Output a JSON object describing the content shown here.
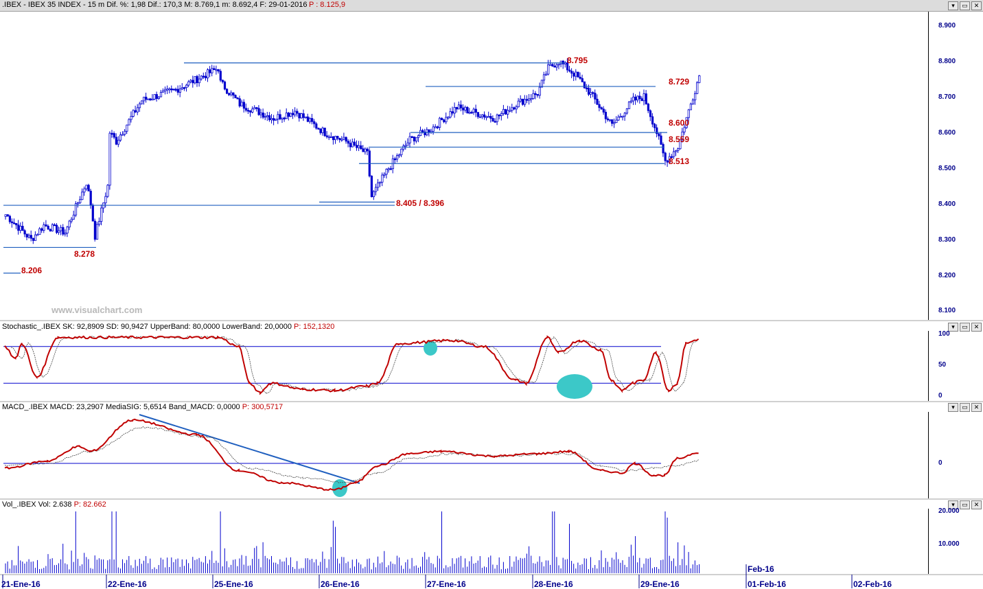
{
  "header": {
    "symbol": ".IBEX - IBEX 35 INDEX -  15 m  Dif. %: 1,98  Dif.: 170,3  M: 8.769,1  m: 8.692,4  F: 29-01-2016",
    "last": "P : 8.125,9"
  },
  "watermark": "www.visualchart.com",
  "window_buttons": [
    "▾",
    "▭",
    "✕"
  ],
  "price_axis": [
    "8.900",
    "8.800",
    "8.700",
    "8.600",
    "8.500",
    "8.400",
    "8.300",
    "8.200",
    "8.100"
  ],
  "levels": {
    "l8795": "8.795",
    "l8729": "8.729",
    "l8600": "8.600",
    "l8559": "8.559",
    "l8513": "8.513",
    "l8405": "8.405 / 8.396",
    "l8278": "8.278",
    "l8206": "8.206"
  },
  "stoch": {
    "title": "Stochastic_.IBEX SK: 92,8909  SD: 90,9427  UpperBand: 80,0000  LowerBand: 20,0000",
    "p": "P: 152,1320",
    "axis": [
      "100",
      "50",
      "0"
    ]
  },
  "macd": {
    "title": "MACD_.IBEX MACD: 23,2907  MediaSIG: 5,6514  Band_MACD: 0,0000",
    "p": "P: 300,5717",
    "axis": [
      "0"
    ]
  },
  "vol": {
    "title": "Vol_.IBEX Vol: 2.638",
    "p": "P: 82.662",
    "axis": [
      "20.000",
      "10.000"
    ]
  },
  "dates": {
    "d1": "21-Ene-16",
    "d2": "22-Ene-16",
    "d3": "25-Ene-16",
    "d4": "26-Ene-16",
    "d5": "27-Ene-16",
    "d6": "28-Ene-16",
    "d7": "29-Ene-16",
    "d8": "Feb-16",
    "d9": "01-Feb-16",
    "d10": "02-Feb-16"
  },
  "colors": {
    "up": "#ffffff",
    "down": "#0000cd",
    "line": "#1f5fbf",
    "signal": "#c00000"
  },
  "chart_data": {
    "type": "candlestick",
    "ylim": [
      8080,
      8940
    ],
    "price_path": [
      [
        8370,
        0
      ],
      [
        8300,
        12
      ],
      [
        8340,
        18
      ],
      [
        8320,
        28
      ],
      [
        8460,
        38
      ],
      [
        8400,
        40
      ],
      [
        8310,
        42
      ],
      [
        8450,
        48
      ],
      [
        8600,
        49
      ],
      [
        8575,
        52
      ],
      [
        8690,
        64
      ],
      [
        8720,
        80
      ],
      [
        8780,
        100
      ],
      [
        8740,
        101
      ],
      [
        8680,
        110
      ],
      [
        8640,
        126
      ],
      [
        8660,
        136
      ],
      [
        8600,
        150
      ],
      [
        8575,
        160
      ],
      [
        8540,
        170
      ],
      [
        8420,
        172
      ],
      [
        8500,
        180
      ],
      [
        8580,
        190
      ],
      [
        8610,
        200
      ],
      [
        8670,
        212
      ],
      [
        8640,
        230
      ],
      [
        8680,
        240
      ],
      [
        8710,
        250
      ],
      [
        8780,
        255
      ],
      [
        8800,
        260
      ],
      [
        8760,
        268
      ],
      [
        8700,
        276
      ],
      [
        8620,
        285
      ],
      [
        8690,
        295
      ],
      [
        8700,
        300
      ],
      [
        8600,
        306
      ],
      [
        8520,
        310
      ],
      [
        8560,
        316
      ],
      [
        8760,
        326
      ]
    ],
    "stochastic": {
      "upper_band": 80,
      "lower_band": 20,
      "sk": [
        [
          80,
          0
        ],
        [
          60,
          5
        ],
        [
          85,
          8
        ],
        [
          30,
          15
        ],
        [
          95,
          25
        ],
        [
          95,
          100
        ],
        [
          80,
          110
        ],
        [
          20,
          115
        ],
        [
          5,
          120
        ],
        [
          20,
          125
        ],
        [
          10,
          140
        ],
        [
          8,
          155
        ],
        [
          15,
          170
        ],
        [
          20,
          175
        ],
        [
          85,
          185
        ],
        [
          90,
          210
        ],
        [
          80,
          225
        ],
        [
          25,
          240
        ],
        [
          20,
          245
        ],
        [
          95,
          255
        ],
        [
          70,
          260
        ],
        [
          90,
          270
        ],
        [
          75,
          280
        ],
        [
          25,
          285
        ],
        [
          8,
          290
        ],
        [
          20,
          295
        ],
        [
          25,
          300
        ],
        [
          70,
          306
        ],
        [
          8,
          312
        ],
        [
          20,
          316
        ],
        [
          85,
          320
        ],
        [
          92,
          326
        ]
      ]
    },
    "macd": {
      "ylim": [
        -70,
        110
      ],
      "macd": [
        [
          -10,
          0
        ],
        [
          5,
          20
        ],
        [
          35,
          35
        ],
        [
          25,
          40
        ],
        [
          90,
          60
        ],
        [
          60,
          90
        ],
        [
          -15,
          110
        ],
        [
          -40,
          130
        ],
        [
          -55,
          155
        ],
        [
          -40,
          165
        ],
        [
          -5,
          175
        ],
        [
          20,
          190
        ],
        [
          25,
          205
        ],
        [
          15,
          230
        ],
        [
          20,
          250
        ],
        [
          25,
          265
        ],
        [
          -15,
          280
        ],
        [
          -20,
          290
        ],
        [
          0,
          296
        ],
        [
          -25,
          305
        ],
        [
          -25,
          310
        ],
        [
          10,
          316
        ],
        [
          23,
          326
        ]
      ],
      "signal": [
        [
          -5,
          0
        ],
        [
          0,
          20
        ],
        [
          25,
          40
        ],
        [
          75,
          65
        ],
        [
          55,
          95
        ],
        [
          -10,
          115
        ],
        [
          -30,
          140
        ],
        [
          -40,
          160
        ],
        [
          -20,
          175
        ],
        [
          10,
          190
        ],
        [
          20,
          210
        ],
        [
          15,
          235
        ],
        [
          20,
          255
        ],
        [
          20,
          268
        ],
        [
          -5,
          280
        ],
        [
          -15,
          292
        ],
        [
          -10,
          305
        ],
        [
          -5,
          316
        ],
        [
          6,
          326
        ]
      ]
    },
    "volume": {
      "ylim": [
        0,
        22000
      ],
      "spikes": [
        [
          20000,
          33
        ],
        [
          20000,
          50
        ],
        [
          20000,
          52
        ],
        [
          20000,
          101
        ],
        [
          17000,
          154
        ],
        [
          15000,
          155
        ],
        [
          20000,
          205
        ],
        [
          20000,
          257
        ],
        [
          20000,
          258
        ],
        [
          16000,
          265
        ],
        [
          12000,
          296
        ],
        [
          20000,
          310
        ],
        [
          18000,
          311
        ],
        [
          10000,
          316
        ],
        [
          9000,
          319
        ]
      ]
    }
  }
}
